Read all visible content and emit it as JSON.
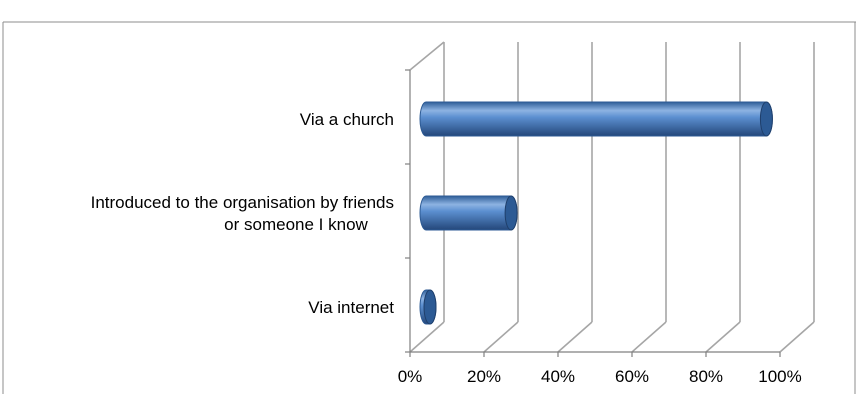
{
  "chart_data": {
    "type": "bar",
    "orientation": "horizontal",
    "style": "3d-cylinder",
    "title": "",
    "categories": [
      "Via a church",
      "Introduced to the organisation by friends or someone I know",
      "Via internet"
    ],
    "category_lines": [
      [
        "Via a church"
      ],
      [
        "Introduced to the organisation by friends",
        "or someone I know"
      ],
      [
        "Via internet"
      ]
    ],
    "values": [
      92,
      23,
      0.5
    ],
    "x_ticks": [
      "0%",
      "20%",
      "40%",
      "60%",
      "80%",
      "100%"
    ],
    "xlim": [
      0,
      100
    ],
    "xlabel": "",
    "ylabel": "",
    "grid": true,
    "legend": "none",
    "colors": {
      "bar_light": "#8db3e2",
      "bar_mid": "#4f81bd",
      "bar_dark": "#254a7a",
      "bar_cap": "#2c5a94",
      "grid": "#a6a6a6"
    }
  }
}
